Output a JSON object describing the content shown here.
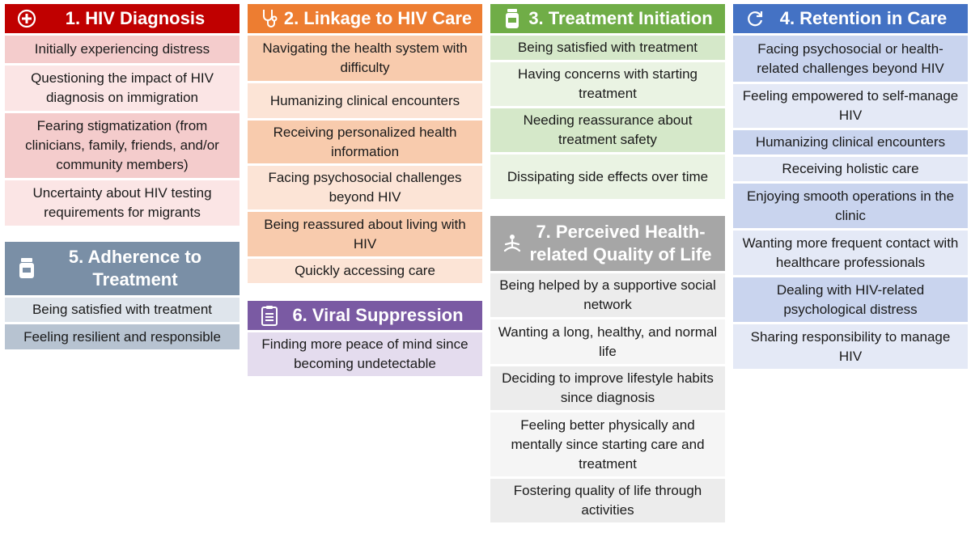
{
  "colors": {
    "diagnosis": "#c00000",
    "linkage": "#ed7d31",
    "treatment": "#70ad47",
    "retention": "#4472c4",
    "adherence": "#7a8fa6",
    "viral": "#7a5aa3",
    "quality": "#a6a6a6"
  },
  "panels": {
    "diagnosis": {
      "title": "1. HIV Diagnosis",
      "icon": "plus-circle-icon",
      "items": [
        "Initially experiencing distress",
        "Questioning the impact of HIV diagnosis on immigration",
        "Fearing stigmatization (from clinicians, family, friends, and/or community members)",
        "Uncertainty about HIV testing requirements for migrants"
      ]
    },
    "linkage": {
      "title": "2. Linkage to HIV Care",
      "icon": "stethoscope-icon",
      "items": [
        "Navigating the health system with difficulty",
        "Humanizing clinical encounters",
        "Receiving personalized health information",
        "Facing psychosocial challenges beyond HIV",
        "Being reassured about living with HIV",
        "Quickly accessing care"
      ]
    },
    "treatment": {
      "title": "3. Treatment Initiation",
      "icon": "pill-bottle-icon",
      "items": [
        "Being satisfied with treatment",
        "Having concerns with starting treatment",
        "Needing reassurance about treatment safety",
        "Dissipating side effects over time"
      ]
    },
    "retention": {
      "title": "4. Retention in Care",
      "icon": "cycle-icon",
      "items": [
        "Facing psychosocial or health-related challenges beyond HIV",
        "Feeling empowered to self-manage HIV",
        "Humanizing clinical encounters",
        "Receiving holistic care",
        "Enjoying smooth operations in the clinic",
        "Wanting more frequent contact with healthcare professionals",
        "Dealing with HIV-related psychological distress",
        "Sharing responsibility to manage HIV"
      ]
    },
    "adherence": {
      "title": "5. Adherence to Treatment",
      "icon": "medicine-bottle-icon",
      "items": [
        "Being satisfied with treatment",
        "Feeling resilient and responsible"
      ]
    },
    "viral": {
      "title": "6. Viral Suppression",
      "icon": "clipboard-icon",
      "items": [
        "Finding more peace of mind since becoming undetectable"
      ]
    },
    "quality": {
      "title": "7. Perceived Health-related Quality of Life",
      "icon": "meditation-icon",
      "items": [
        "Being helped by a supportive social network",
        "Wanting a long, healthy, and normal life",
        "Deciding to improve lifestyle habits since diagnosis",
        "Feeling better physically and mentally since starting care and treatment",
        "Fostering quality of life through activities"
      ]
    }
  }
}
